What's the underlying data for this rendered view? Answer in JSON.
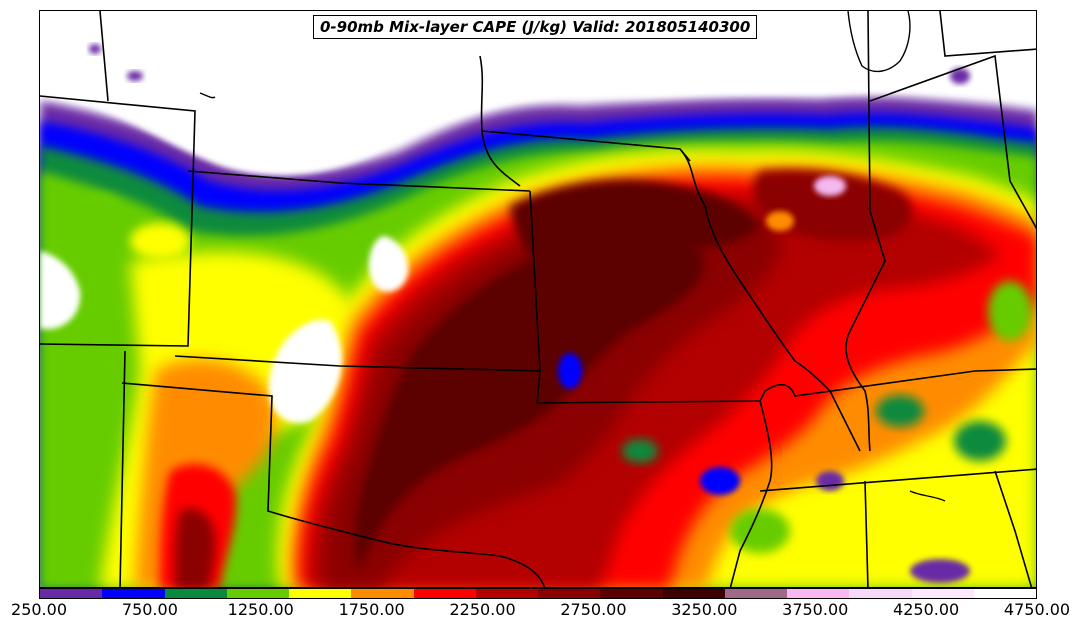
{
  "title": "0-90mb Mix-layer CAPE (J/kg) Valid: 201805140300",
  "colorbar": {
    "colors": [
      "#6a2aa5",
      "#0000ff",
      "#0a8a3c",
      "#66cc00",
      "#ffff00",
      "#ff8c00",
      "#ff0000",
      "#b30000",
      "#8b0000",
      "#5c0000",
      "#3d0000",
      "#9e6a87",
      "#f5b8f0",
      "#f8d8f8",
      "#fde8fd",
      "#ffffff"
    ],
    "labels": [
      "250.00",
      "750.00",
      "1250.00",
      "1750.00",
      "2250.00",
      "2750.00",
      "3250.00",
      "3750.00",
      "4250.00",
      "4750.00"
    ]
  }
}
